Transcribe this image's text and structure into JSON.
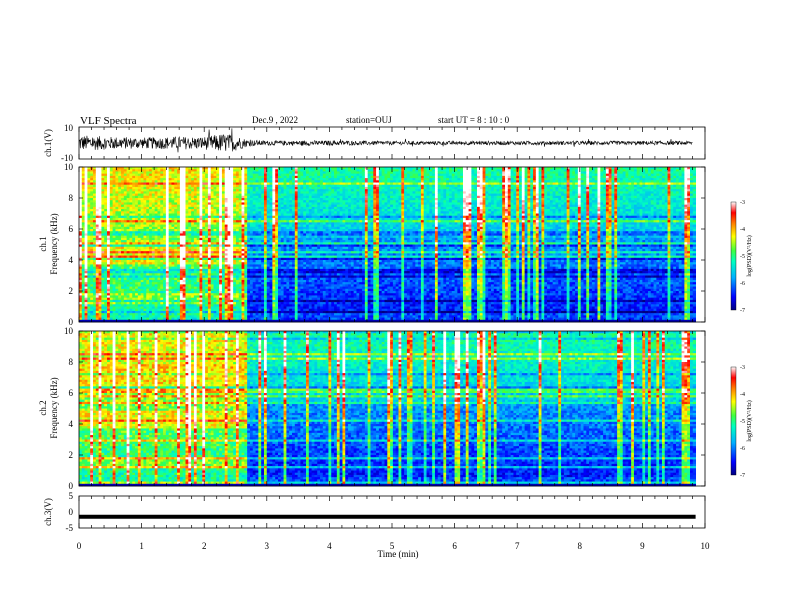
{
  "header": {
    "title": "VLF Spectra",
    "date": "Dec.9 , 2022",
    "station": "station=OUJ",
    "start_ut": "start UT = 8 : 10 : 0"
  },
  "chart_data": [
    {
      "type": "line",
      "panel": "ch1-waveform",
      "ylabel": "ch.1(V)",
      "ylim": [
        -10,
        10
      ],
      "y_ticks": [
        "10",
        "-10"
      ],
      "x": [
        0,
        0.5,
        1.0,
        1.5,
        2.0,
        2.3,
        2.5,
        2.7,
        3,
        4,
        5,
        6,
        7,
        8,
        9,
        9.8
      ],
      "amplitude_envelope": [
        5,
        4,
        3.5,
        4,
        4,
        6,
        5,
        2,
        1.5,
        1.5,
        1.2,
        1.2,
        1.2,
        1.2,
        1.2,
        1.2
      ],
      "color": "#000000"
    },
    {
      "type": "heatmap",
      "panel": "ch1-spectrogram",
      "ylabel_line1": "ch.1",
      "ylabel_line2": "Frequency (kHz)",
      "ylim": [
        0,
        10
      ],
      "y_ticks": [
        "0",
        "2",
        "4",
        "6",
        "8",
        "10"
      ],
      "regime_change_min": 2.65,
      "colorbar": {
        "label": "log(PSD)(V²/Hz)",
        "range": [
          -7,
          -3
        ],
        "ticks": [
          "-3",
          "-4",
          "-5",
          "-6",
          "-7"
        ]
      }
    },
    {
      "type": "heatmap",
      "panel": "ch2-spectrogram",
      "ylabel_line1": "ch.2",
      "ylabel_line2": "Frequency (kHz)",
      "ylim": [
        0,
        10
      ],
      "y_ticks": [
        "0",
        "2",
        "4",
        "6",
        "8",
        "10"
      ],
      "regime_change_min": 2.65,
      "colorbar": {
        "label": "log(PSD)(V²/Hz)",
        "range": [
          -7,
          -3
        ],
        "ticks": [
          "-3",
          "-4",
          "-5",
          "-6",
          "-7"
        ]
      }
    },
    {
      "type": "line",
      "panel": "ch3-waveform",
      "ylabel": "ch.3(V)",
      "ylim": [
        -5,
        5
      ],
      "y_ticks": [
        "5",
        "0",
        "-5"
      ],
      "x": [
        0,
        9.85
      ],
      "y": [
        -1.5,
        -1.5
      ],
      "color": "#000000"
    }
  ],
  "xaxis": {
    "label": "Time (min)",
    "range": [
      0,
      10
    ],
    "ticks": [
      "0",
      "1",
      "2",
      "3",
      "4",
      "5",
      "6",
      "7",
      "8",
      "9",
      "10"
    ]
  },
  "colors": {
    "background": "#ffffff",
    "axes": "#000000",
    "colormap": [
      "#000080",
      "#0000ff",
      "#00b0ff",
      "#00ffc0",
      "#40ff40",
      "#ffff00",
      "#ff8000",
      "#ff0000",
      "#ffffff"
    ]
  }
}
